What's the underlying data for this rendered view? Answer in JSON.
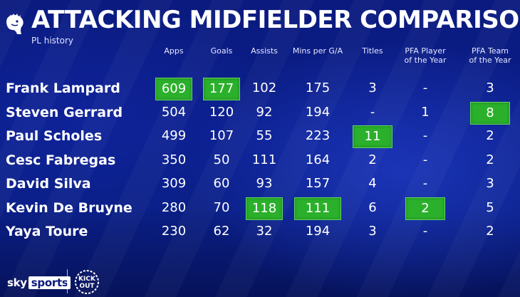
{
  "title": "ATTACKING MIDFIELDER COMPARISON",
  "subtitle": "PL history",
  "columns": [
    "Apps",
    "Goals",
    "Assists",
    "Mins per G/A",
    "Titles",
    "PFA Player of the Year",
    "PFA Team of the Year"
  ],
  "highlight_color": "#2bb02b",
  "players": [
    {
      "name": "Frank Lampard",
      "values": [
        "609",
        "177",
        "102",
        "175",
        "3",
        "-",
        "3"
      ],
      "highlight": [
        true,
        true,
        false,
        false,
        false,
        false,
        false
      ]
    },
    {
      "name": "Steven Gerrard",
      "values": [
        "504",
        "120",
        "92",
        "194",
        "-",
        "1",
        "8"
      ],
      "highlight": [
        false,
        false,
        false,
        false,
        false,
        false,
        true
      ]
    },
    {
      "name": "Paul Scholes",
      "values": [
        "499",
        "107",
        "55",
        "223",
        "11",
        "-",
        "2"
      ],
      "highlight": [
        false,
        false,
        false,
        false,
        true,
        false,
        false
      ]
    },
    {
      "name": "Cesc Fabregas",
      "values": [
        "350",
        "50",
        "111",
        "164",
        "2",
        "-",
        "2"
      ],
      "highlight": [
        false,
        false,
        false,
        false,
        false,
        false,
        false
      ]
    },
    {
      "name": "David Silva",
      "values": [
        "309",
        "60",
        "93",
        "157",
        "4",
        "-",
        "3"
      ],
      "highlight": [
        false,
        false,
        false,
        false,
        false,
        false,
        false
      ]
    },
    {
      "name": "Kevin De Bruyne",
      "values": [
        "280",
        "70",
        "118",
        "111",
        "6",
        "2",
        "5"
      ],
      "highlight": [
        false,
        false,
        true,
        true,
        false,
        true,
        false
      ]
    },
    {
      "name": "Yaya Toure",
      "values": [
        "230",
        "62",
        "32",
        "194",
        "3",
        "-",
        "2"
      ],
      "highlight": [
        false,
        false,
        false,
        false,
        false,
        false,
        false
      ]
    }
  ],
  "footer": {
    "sky_word": "sky",
    "sports_word": "sports",
    "logo_text": "KICK OUT"
  },
  "icons": {
    "league_badge": "lion-crest-icon",
    "partner_logo": "kick-it-out-logo"
  }
}
